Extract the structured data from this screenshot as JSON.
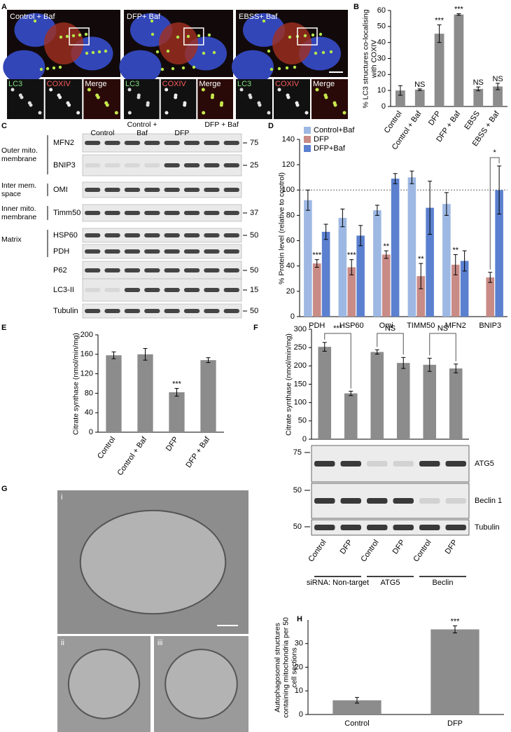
{
  "figure": {
    "panel_labels": [
      "A",
      "B",
      "C",
      "D",
      "E",
      "F",
      "G",
      "H"
    ],
    "panel_a": {
      "images": [
        {
          "title": "Control + Baf"
        },
        {
          "title": "DFP+ Baf"
        },
        {
          "title": "EBSS+ Baf"
        }
      ],
      "channels": [
        "LC3",
        "COXIV",
        "Merge"
      ]
    },
    "blot_c": {
      "conditions": [
        "Control",
        "Control + Baf",
        "DFP",
        "DFP + Baf"
      ],
      "groups": [
        "Outer mito. membrane",
        "Inter mem. space",
        "Inner mito. membrane",
        "Matrix"
      ],
      "rows": [
        {
          "label": "MFN2",
          "marker": 75
        },
        {
          "label": "BNIP3",
          "marker": 25
        },
        {
          "label": "OMI",
          "marker": null
        },
        {
          "label": "Timm50",
          "marker": 37
        },
        {
          "label": "HSP60",
          "marker": 50
        },
        {
          "label": "PDH",
          "marker": null
        },
        {
          "label": "P62",
          "marker": 50
        },
        {
          "label": "LC3-II",
          "marker": 15
        },
        {
          "label": "Tubulin",
          "marker": 50
        }
      ]
    },
    "blot_f": {
      "rows": [
        {
          "label": "ATG5",
          "marker": 75
        },
        {
          "label": "Beclin 1",
          "marker": 50
        },
        {
          "label": "Tubulin",
          "marker": 50
        }
      ]
    },
    "panel_g": {
      "labels": [
        "i",
        "ii",
        "iii"
      ]
    }
  },
  "chart_data": [
    {
      "type": "bar",
      "y_label": "% LC3 structures co-localising with COXIV",
      "categories": [
        "Control",
        "Control + Baf",
        "DFP",
        "DFP + Baf",
        "EBSS",
        "EBSS + Baf"
      ],
      "values": [
        10,
        10.5,
        45.5,
        57.5,
        11,
        12.5
      ],
      "errors": [
        3,
        0.5,
        5.5,
        0.5,
        1.2,
        2
      ],
      "annotations": [
        null,
        "NS",
        "***",
        "***",
        "NS",
        "NS"
      ],
      "color": "#8c8c8c",
      "ylim": [
        0,
        60
      ],
      "yticks": [
        0,
        10,
        20,
        30,
        40,
        50,
        60
      ]
    },
    {
      "type": "bar",
      "y_label": "% Protein level (relative to control)",
      "categories": [
        "PDH",
        "HSP60",
        "Omi",
        "TIMM50",
        "MFN2",
        "BNIP3"
      ],
      "series": [
        {
          "name": "Control+Baf",
          "color": "#9db8e3",
          "values": [
            92,
            78,
            84,
            110,
            89,
            null
          ],
          "errors": [
            8,
            7,
            4,
            5,
            9,
            null
          ]
        },
        {
          "name": "DFP",
          "color": "#c98b86",
          "values": [
            42,
            39,
            49,
            32,
            41,
            31
          ],
          "errors": [
            3,
            6,
            3,
            10,
            8,
            4
          ],
          "annotations": [
            "***",
            "***",
            "**",
            "**",
            "**",
            null
          ]
        },
        {
          "name": "DFP+Baf",
          "color": "#5b80cf",
          "values": [
            67,
            64,
            109,
            86,
            44,
            100
          ],
          "errors": [
            6,
            8,
            4,
            21,
            8,
            19
          ]
        }
      ],
      "reference_line": 100,
      "brackets": [
        {
          "label": "*"
        }
      ],
      "legend": "upper-left",
      "ylim": [
        0,
        140
      ],
      "yticks": [
        0,
        20,
        40,
        60,
        80,
        100,
        120,
        140
      ]
    },
    {
      "type": "bar",
      "y_label": "Citrate synthase (nmol/min/mg)",
      "categories": [
        "Control",
        "Control + Baf",
        "DFP",
        "DFP + Baf"
      ],
      "values": [
        158,
        160,
        82,
        148
      ],
      "errors": [
        7,
        12,
        8,
        5
      ],
      "annotations": [
        null,
        null,
        "***",
        null
      ],
      "color": "#8c8c8c",
      "ylim": [
        0,
        200
      ],
      "yticks": [
        0,
        40,
        80,
        120,
        160,
        200
      ]
    },
    {
      "type": "bar",
      "y_label": "Citrate synthase (nmol/min/mg)",
      "categories": [
        "Control",
        "DFP",
        "Control",
        "DFP",
        "Control",
        "DFP"
      ],
      "groups": [
        "siRNA: Non-target",
        "ATG5",
        "Beclin"
      ],
      "values": [
        252,
        125,
        238,
        208,
        203,
        193
      ],
      "errors": [
        12,
        6,
        6,
        15,
        18,
        12
      ],
      "brackets": [
        {
          "label": "***"
        },
        {
          "label": "NS"
        },
        {
          "label": "NS"
        }
      ],
      "color": "#8c8c8c",
      "ylim": [
        0,
        300
      ],
      "yticks": [
        0,
        50,
        100,
        150,
        200,
        250,
        300
      ]
    },
    {
      "type": "bar",
      "y_label": "Autophagosomal structures containing mitochondria per 50 cell sections",
      "categories": [
        "Control",
        "DFP"
      ],
      "values": [
        6,
        36
      ],
      "errors": [
        1.2,
        1.5
      ],
      "annotations": [
        null,
        "***"
      ],
      "color": "#8c8c8c",
      "ylim": [
        0,
        40
      ],
      "yticks": [
        0,
        10,
        20,
        30
      ]
    }
  ]
}
